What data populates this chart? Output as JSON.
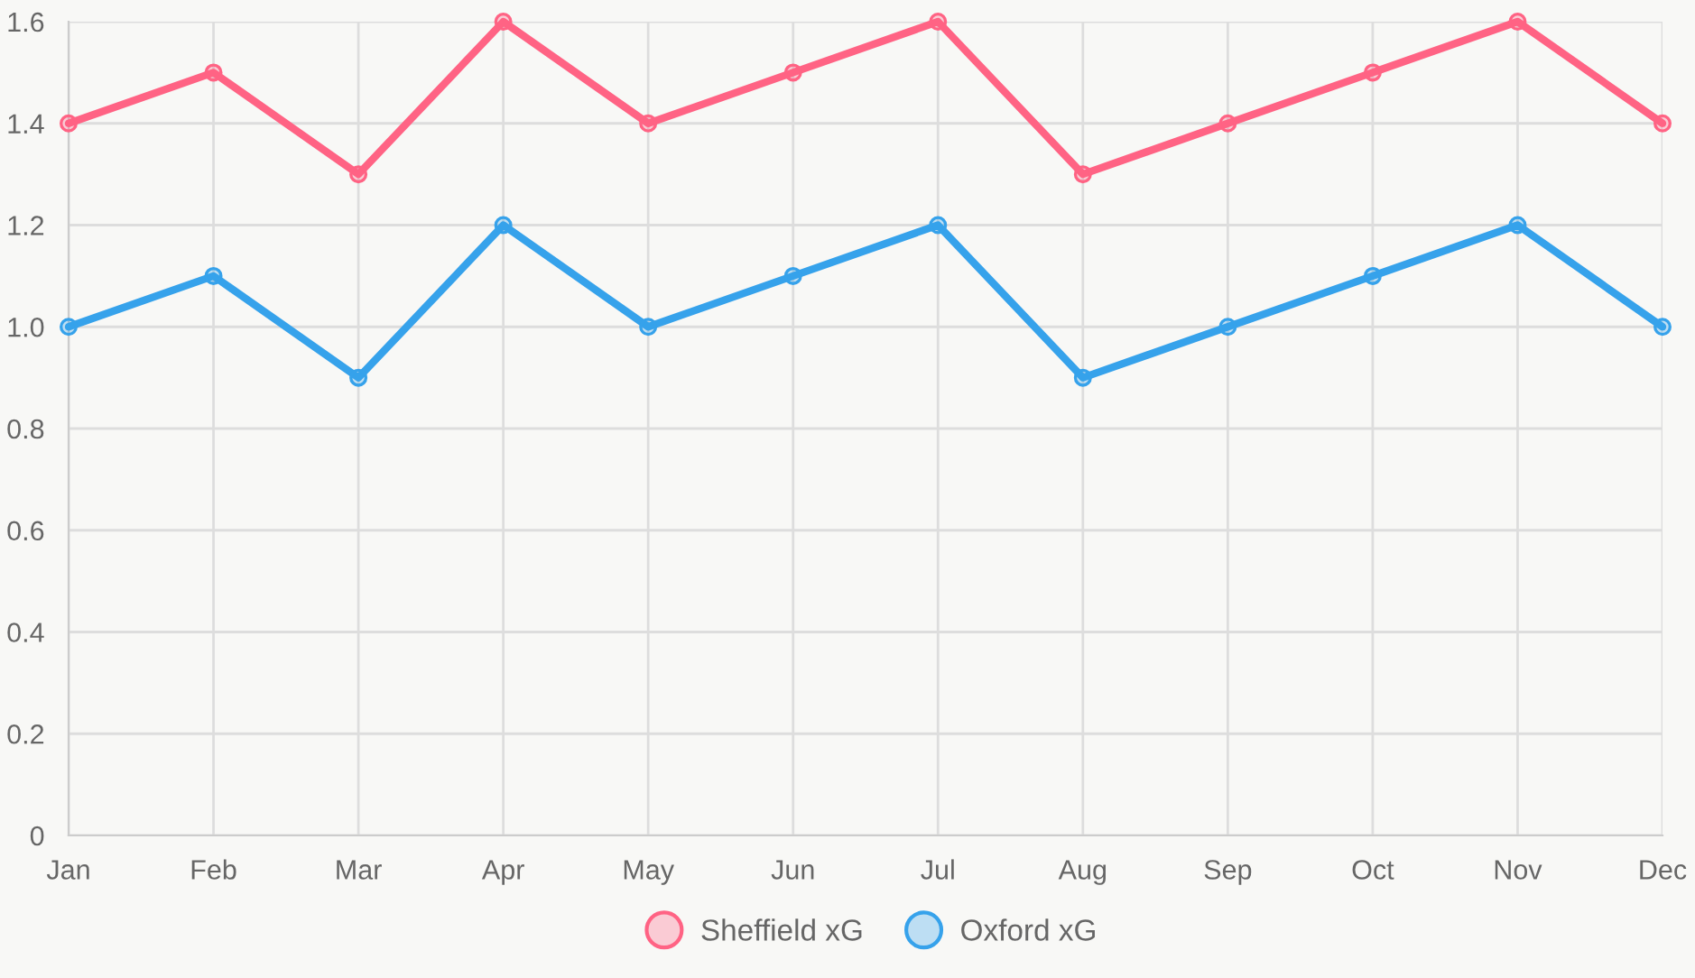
{
  "chart_data": {
    "type": "line",
    "categories": [
      "Jan",
      "Feb",
      "Mar",
      "Apr",
      "May",
      "Jun",
      "Jul",
      "Aug",
      "Sep",
      "Oct",
      "Nov",
      "Dec"
    ],
    "series": [
      {
        "name": "Sheffield xG",
        "color": "#ff6384",
        "values": [
          1.4,
          1.5,
          1.3,
          1.6,
          1.4,
          1.5,
          1.6,
          1.3,
          1.4,
          1.5,
          1.6,
          1.4
        ]
      },
      {
        "name": "Oxford xG",
        "color": "#36a2eb",
        "values": [
          1.0,
          1.1,
          0.9,
          1.2,
          1.0,
          1.1,
          1.2,
          0.9,
          1.0,
          1.1,
          1.2,
          1.0
        ]
      }
    ],
    "ylim": [
      0,
      1.6
    ],
    "yticks": [
      0,
      0.2,
      0.4,
      0.6,
      0.8,
      {
        "value": 1,
        "label": "1.0"
      },
      1.2,
      1.4,
      1.6
    ],
    "grid": true,
    "legend": "bottom",
    "marker": "circle",
    "line_style": "solid"
  }
}
